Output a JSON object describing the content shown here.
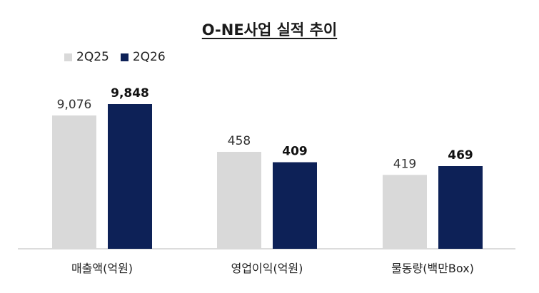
{
  "chart_data": {
    "type": "bar",
    "title": "O-NE사업 실적 추이",
    "categories": [
      "매출액(억원)",
      "영업이익(억원)",
      "물동량(백만Box)"
    ],
    "series": [
      {
        "name": "2Q25",
        "values": [
          9076,
          458,
          419
        ],
        "labels": [
          "9,076",
          "458",
          "419"
        ],
        "color": "#d9d9d9",
        "label_color": "#333333",
        "label_weight": "normal"
      },
      {
        "name": "2Q26",
        "values": [
          9848,
          409,
          469
        ],
        "labels": [
          "9,848",
          "409",
          "469"
        ],
        "color": "#0d2157",
        "label_color": "#111111",
        "label_weight": "bold"
      }
    ],
    "xlabel": "",
    "ylabel": "",
    "grid": false,
    "legend_position": "top-left"
  }
}
